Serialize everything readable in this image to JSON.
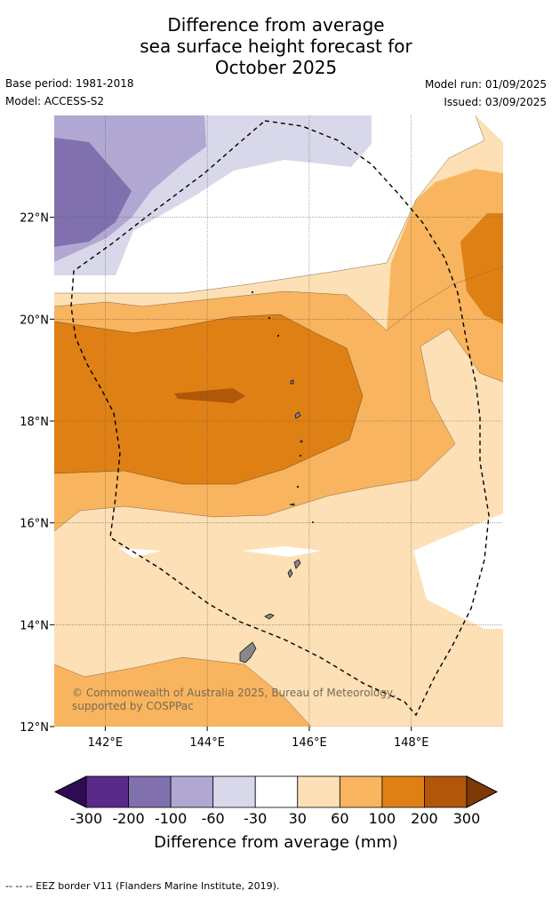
{
  "title_lines": [
    "Difference from average",
    "sea surface height forecast for",
    "October 2025"
  ],
  "meta": {
    "base_period": "Base period: 1981-2018",
    "model": "Model: ACCESS-S2",
    "model_run": "Model run: 01/09/2025",
    "issued": "Issued: 03/09/2025"
  },
  "map": {
    "lon_range": [
      141,
      149.8
    ],
    "lat_range": [
      12,
      24
    ],
    "lon_ticks": [
      {
        "v": 142,
        "label": "142°E"
      },
      {
        "v": 144,
        "label": "144°E"
      },
      {
        "v": 146,
        "label": "146°E"
      },
      {
        "v": 148,
        "label": "148°E"
      }
    ],
    "lat_ticks": [
      {
        "v": 12,
        "label": "12°N"
      },
      {
        "v": 14,
        "label": "14°N"
      },
      {
        "v": 16,
        "label": "16°N"
      },
      {
        "v": 18,
        "label": "18°N"
      },
      {
        "v": 20,
        "label": "20°N"
      },
      {
        "v": 22,
        "label": "22°N"
      }
    ]
  },
  "credit": "© Commonwealth of Australia 2025, Bureau of Meteorology, supported by COSPPac",
  "colorbar": {
    "labels": [
      "-300",
      "-200",
      "-100",
      "-60",
      "-30",
      "30",
      "60",
      "100",
      "200",
      "300"
    ],
    "colors": [
      "#2f0b56",
      "#5a2a8a",
      "#8070ae",
      "#b0a8d2",
      "#d8d8ea",
      "#ffffff",
      "#fde0b6",
      "#f8b45e",
      "#df8015",
      "#b1570a",
      "#7e3a06"
    ],
    "title": "Difference from average (mm)"
  },
  "footnote": "-- -- -- EEZ border V11 (Flanders Marine Institute, 2019)."
}
